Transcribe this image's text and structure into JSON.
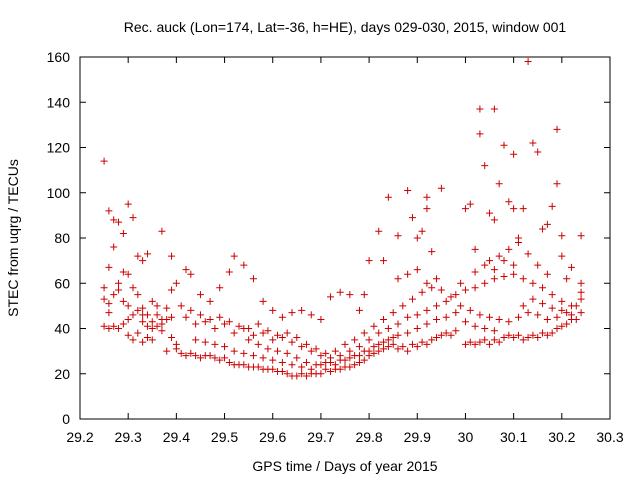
{
  "chart_data": {
    "type": "scatter",
    "title": "Rec. auck (Lon=174, Lat=-36, h=HE), days 029-030, 2015, window 001",
    "xlabel": "GPS time / Days of year 2015",
    "ylabel": "STEC from uqrg / TECUs",
    "xlim": [
      29.2,
      30.3
    ],
    "ylim": [
      0,
      160
    ],
    "x_ticks": [
      29.2,
      29.3,
      29.4,
      29.5,
      29.6,
      29.7,
      29.8,
      29.9,
      30.0,
      30.1,
      30.2,
      30.3
    ],
    "x_tick_labels": [
      "29.2",
      "29.3",
      "29.4",
      "29.5",
      "29.6",
      "29.7",
      "29.8",
      "29.9",
      "30",
      "30.1",
      "30.2",
      "30.3"
    ],
    "y_ticks": [
      0,
      20,
      40,
      60,
      80,
      100,
      120,
      140,
      160
    ],
    "y_tick_labels": [
      "0",
      "20",
      "40",
      "60",
      "80",
      "100",
      "120",
      "140",
      "160"
    ],
    "grid": false,
    "marker": "plus",
    "color": "#cc0000",
    "points": [
      [
        29.25,
        114
      ],
      [
        29.26,
        92
      ],
      [
        29.27,
        88
      ],
      [
        29.28,
        87
      ],
      [
        29.29,
        82
      ],
      [
        29.3,
        95
      ],
      [
        29.31,
        89
      ],
      [
        29.27,
        76
      ],
      [
        29.26,
        67
      ],
      [
        29.29,
        65
      ],
      [
        29.3,
        64
      ],
      [
        29.32,
        72
      ],
      [
        29.33,
        70
      ],
      [
        29.34,
        73
      ],
      [
        29.37,
        83
      ],
      [
        29.39,
        72
      ],
      [
        29.25,
        58
      ],
      [
        29.25,
        53
      ],
      [
        29.26,
        51
      ],
      [
        29.26,
        47
      ],
      [
        29.27,
        55
      ],
      [
        29.28,
        57
      ],
      [
        29.28,
        60
      ],
      [
        29.29,
        52
      ],
      [
        29.3,
        50
      ],
      [
        29.31,
        58
      ],
      [
        29.32,
        55
      ],
      [
        29.33,
        49
      ],
      [
        29.34,
        46
      ],
      [
        29.35,
        52
      ],
      [
        29.36,
        50
      ],
      [
        29.37,
        44
      ],
      [
        29.25,
        41
      ],
      [
        29.26,
        40
      ],
      [
        29.27,
        41
      ],
      [
        29.28,
        40
      ],
      [
        29.29,
        42
      ],
      [
        29.3,
        37
      ],
      [
        29.31,
        35
      ],
      [
        29.32,
        38
      ],
      [
        29.33,
        34
      ],
      [
        29.34,
        36
      ],
      [
        29.35,
        35
      ],
      [
        29.36,
        41
      ],
      [
        29.37,
        39
      ],
      [
        29.38,
        44
      ],
      [
        29.39,
        36
      ],
      [
        29.4,
        33
      ],
      [
        29.38,
        30
      ],
      [
        29.4,
        31
      ],
      [
        29.41,
        29
      ],
      [
        29.42,
        28
      ],
      [
        29.43,
        29
      ],
      [
        29.44,
        28
      ],
      [
        29.45,
        27
      ],
      [
        29.46,
        28
      ],
      [
        29.47,
        28
      ],
      [
        29.48,
        27
      ],
      [
        29.49,
        26
      ],
      [
        29.5,
        27
      ],
      [
        29.51,
        25
      ],
      [
        29.52,
        24
      ],
      [
        29.53,
        24
      ],
      [
        29.54,
        24
      ],
      [
        29.55,
        23
      ],
      [
        29.56,
        23
      ],
      [
        29.57,
        23
      ],
      [
        29.58,
        22
      ],
      [
        29.59,
        22
      ],
      [
        29.6,
        22
      ],
      [
        29.61,
        21
      ],
      [
        29.62,
        21
      ],
      [
        29.63,
        20
      ],
      [
        29.64,
        19
      ],
      [
        29.65,
        19
      ],
      [
        29.66,
        20
      ],
      [
        29.67,
        19
      ],
      [
        29.68,
        20
      ],
      [
        29.69,
        20
      ],
      [
        29.7,
        20
      ],
      [
        29.71,
        22
      ],
      [
        29.72,
        21
      ],
      [
        29.73,
        22
      ],
      [
        29.74,
        22
      ],
      [
        29.75,
        23
      ],
      [
        29.76,
        23
      ],
      [
        29.77,
        24
      ],
      [
        29.78,
        25
      ],
      [
        29.79,
        26
      ],
      [
        29.8,
        28
      ],
      [
        29.81,
        29
      ],
      [
        29.82,
        30
      ],
      [
        29.83,
        31
      ],
      [
        29.84,
        32
      ],
      [
        29.85,
        33
      ],
      [
        29.86,
        31
      ],
      [
        29.87,
        32
      ],
      [
        29.88,
        30
      ],
      [
        29.89,
        33
      ],
      [
        29.9,
        32
      ],
      [
        29.91,
        34
      ],
      [
        29.92,
        33
      ],
      [
        29.93,
        35
      ],
      [
        29.94,
        36
      ],
      [
        29.95,
        37
      ],
      [
        29.96,
        38
      ],
      [
        29.97,
        37
      ],
      [
        29.98,
        39
      ],
      [
        30.0,
        33
      ],
      [
        30.01,
        34
      ],
      [
        30.02,
        33
      ],
      [
        30.03,
        34
      ],
      [
        30.04,
        35
      ],
      [
        30.05,
        33
      ],
      [
        30.06,
        35
      ],
      [
        30.07,
        34
      ],
      [
        30.08,
        36
      ],
      [
        30.09,
        37
      ],
      [
        30.1,
        36
      ],
      [
        30.11,
        37
      ],
      [
        30.12,
        35
      ],
      [
        30.13,
        36
      ],
      [
        30.14,
        37
      ],
      [
        30.15,
        36
      ],
      [
        30.16,
        38
      ],
      [
        30.17,
        37
      ],
      [
        30.18,
        38
      ],
      [
        30.19,
        40
      ],
      [
        30.2,
        41
      ],
      [
        30.21,
        42
      ],
      [
        30.22,
        44
      ],
      [
        30.23,
        44
      ],
      [
        30.24,
        47
      ],
      [
        30.24,
        53
      ],
      [
        30.24,
        56
      ],
      [
        30.24,
        60
      ],
      [
        30.24,
        81
      ],
      [
        30.22,
        67
      ],
      [
        30.21,
        62
      ],
      [
        30.2,
        72
      ],
      [
        30.2,
        81
      ],
      [
        30.19,
        104
      ],
      [
        30.19,
        128
      ],
      [
        30.18,
        94
      ],
      [
        30.17,
        86
      ],
      [
        30.16,
        84
      ],
      [
        30.15,
        118
      ],
      [
        30.14,
        122
      ],
      [
        30.13,
        158
      ],
      [
        30.12,
        93
      ],
      [
        30.11,
        80
      ],
      [
        30.1,
        93
      ],
      [
        30.1,
        117
      ],
      [
        30.09,
        96
      ],
      [
        30.08,
        121
      ],
      [
        30.07,
        104
      ],
      [
        30.06,
        137
      ],
      [
        30.06,
        88
      ],
      [
        30.05,
        91
      ],
      [
        30.04,
        112
      ],
      [
        30.03,
        137
      ],
      [
        30.03,
        126
      ],
      [
        30.02,
        75
      ],
      [
        30.01,
        95
      ],
      [
        30.0,
        93
      ],
      [
        29.99,
        60
      ],
      [
        29.95,
        102
      ],
      [
        29.93,
        74
      ],
      [
        29.92,
        93
      ],
      [
        29.92,
        98
      ],
      [
        29.91,
        83
      ],
      [
        29.9,
        80
      ],
      [
        29.89,
        89
      ],
      [
        29.88,
        101
      ],
      [
        29.86,
        81
      ],
      [
        29.84,
        98
      ],
      [
        29.83,
        70
      ],
      [
        29.82,
        83
      ],
      [
        29.8,
        70
      ],
      [
        29.79,
        55
      ],
      [
        29.78,
        48
      ],
      [
        29.76,
        55
      ],
      [
        29.74,
        56
      ],
      [
        29.72,
        54
      ],
      [
        29.7,
        44
      ],
      [
        29.68,
        46
      ],
      [
        29.66,
        48
      ],
      [
        29.64,
        47
      ],
      [
        29.62,
        45
      ],
      [
        29.6,
        48
      ],
      [
        29.58,
        52
      ],
      [
        29.56,
        62
      ],
      [
        29.54,
        68
      ],
      [
        29.52,
        72
      ],
      [
        29.51,
        65
      ],
      [
        29.49,
        58
      ],
      [
        29.47,
        52
      ],
      [
        29.45,
        55
      ],
      [
        29.43,
        64
      ],
      [
        29.42,
        66
      ],
      [
        29.4,
        60
      ],
      [
        29.39,
        57
      ],
      [
        29.38,
        49
      ],
      [
        29.36,
        46
      ],
      [
        29.35,
        43
      ],
      [
        29.34,
        41
      ],
      [
        29.33,
        46
      ],
      [
        29.32,
        48
      ],
      [
        29.42,
        45
      ],
      [
        29.44,
        42
      ],
      [
        29.46,
        43
      ],
      [
        29.48,
        40
      ],
      [
        29.5,
        42
      ],
      [
        29.52,
        38
      ],
      [
        29.54,
        40
      ],
      [
        29.56,
        37
      ],
      [
        29.58,
        38
      ],
      [
        29.6,
        35
      ],
      [
        29.62,
        36
      ],
      [
        29.64,
        34
      ],
      [
        29.66,
        32
      ],
      [
        29.68,
        30
      ],
      [
        29.7,
        28
      ],
      [
        29.72,
        27
      ],
      [
        29.74,
        28
      ],
      [
        29.76,
        30
      ],
      [
        29.78,
        32
      ],
      [
        29.8,
        35
      ],
      [
        29.82,
        38
      ],
      [
        29.84,
        40
      ],
      [
        29.86,
        42
      ],
      [
        29.88,
        45
      ],
      [
        29.9,
        46
      ],
      [
        29.92,
        48
      ],
      [
        29.94,
        50
      ],
      [
        29.96,
        52
      ],
      [
        29.98,
        55
      ],
      [
        30.0,
        57
      ],
      [
        30.02,
        58
      ],
      [
        30.04,
        60
      ],
      [
        30.06,
        62
      ],
      [
        30.08,
        63
      ],
      [
        30.1,
        64
      ],
      [
        30.12,
        62
      ],
      [
        30.14,
        60
      ],
      [
        30.16,
        58
      ],
      [
        30.18,
        55
      ],
      [
        30.2,
        52
      ],
      [
        30.22,
        50
      ],
      [
        30.05,
        70
      ],
      [
        30.07,
        72
      ],
      [
        30.09,
        75
      ],
      [
        30.11,
        78
      ],
      [
        30.13,
        73
      ],
      [
        30.15,
        68
      ],
      [
        30.17,
        64
      ],
      [
        29.41,
        50
      ],
      [
        29.43,
        48
      ],
      [
        29.45,
        46
      ],
      [
        29.47,
        44
      ],
      [
        29.49,
        45
      ],
      [
        29.51,
        43
      ],
      [
        29.53,
        41
      ],
      [
        29.55,
        40
      ],
      [
        29.57,
        42
      ],
      [
        29.59,
        39
      ],
      [
        29.61,
        37
      ],
      [
        29.63,
        38
      ],
      [
        29.65,
        36
      ],
      [
        29.67,
        33
      ],
      [
        29.69,
        31
      ],
      [
        29.71,
        29
      ],
      [
        29.73,
        30
      ],
      [
        29.75,
        33
      ],
      [
        29.77,
        35
      ],
      [
        29.79,
        38
      ],
      [
        29.81,
        41
      ],
      [
        29.83,
        44
      ],
      [
        29.85,
        47
      ],
      [
        29.87,
        50
      ],
      [
        29.89,
        53
      ],
      [
        29.91,
        56
      ],
      [
        29.93,
        58
      ],
      [
        29.95,
        57
      ],
      [
        29.97,
        54
      ],
      [
        29.99,
        50
      ],
      [
        30.01,
        48
      ],
      [
        30.03,
        46
      ],
      [
        30.05,
        45
      ],
      [
        30.07,
        44
      ],
      [
        30.09,
        43
      ],
      [
        30.11,
        45
      ],
      [
        30.13,
        47
      ],
      [
        30.15,
        46
      ],
      [
        30.17,
        44
      ],
      [
        30.19,
        45
      ],
      [
        30.21,
        47
      ],
      [
        30.23,
        50
      ],
      [
        29.86,
        62
      ],
      [
        29.88,
        64
      ],
      [
        29.9,
        66
      ],
      [
        29.92,
        60
      ],
      [
        29.94,
        62
      ],
      [
        30.02,
        65
      ],
      [
        30.04,
        68
      ],
      [
        30.06,
        66
      ],
      [
        30.08,
        70
      ],
      [
        30.1,
        68
      ],
      [
        30.12,
        50
      ],
      [
        30.14,
        53
      ],
      [
        30.16,
        51
      ],
      [
        30.18,
        49
      ],
      [
        30.2,
        48
      ],
      [
        30.22,
        46
      ],
      [
        29.3,
        44
      ],
      [
        29.31,
        46
      ],
      [
        29.33,
        43
      ],
      [
        29.35,
        40
      ],
      [
        29.37,
        42
      ],
      [
        29.39,
        45
      ],
      [
        29.44,
        35
      ],
      [
        29.46,
        34
      ],
      [
        29.48,
        33
      ],
      [
        29.5,
        32
      ],
      [
        29.52,
        30
      ],
      [
        29.54,
        29
      ],
      [
        29.56,
        28
      ],
      [
        29.58,
        27
      ],
      [
        29.6,
        26
      ],
      [
        29.62,
        25
      ],
      [
        29.64,
        24
      ],
      [
        29.66,
        23
      ],
      [
        29.68,
        22
      ],
      [
        29.7,
        24
      ],
      [
        29.72,
        25
      ],
      [
        29.74,
        26
      ],
      [
        29.76,
        27
      ],
      [
        29.78,
        28
      ],
      [
        29.8,
        30
      ],
      [
        29.82,
        33
      ],
      [
        29.84,
        35
      ],
      [
        29.86,
        37
      ],
      [
        29.88,
        38
      ],
      [
        29.9,
        40
      ],
      [
        29.92,
        42
      ],
      [
        29.94,
        44
      ],
      [
        29.96,
        45
      ],
      [
        29.98,
        47
      ],
      [
        30.0,
        43
      ],
      [
        30.02,
        41
      ],
      [
        30.04,
        40
      ],
      [
        30.06,
        39
      ],
      [
        29.55,
        35
      ],
      [
        29.57,
        33
      ],
      [
        29.59,
        31
      ],
      [
        29.61,
        30
      ],
      [
        29.63,
        29
      ],
      [
        29.65,
        27
      ],
      [
        29.67,
        25
      ],
      [
        29.69,
        24
      ],
      [
        29.71,
        25
      ],
      [
        29.73,
        24
      ],
      [
        29.75,
        26
      ],
      [
        29.77,
        28
      ],
      [
        29.79,
        30
      ],
      [
        29.81,
        32
      ],
      [
        29.83,
        34
      ],
      [
        29.85,
        36
      ]
    ]
  }
}
